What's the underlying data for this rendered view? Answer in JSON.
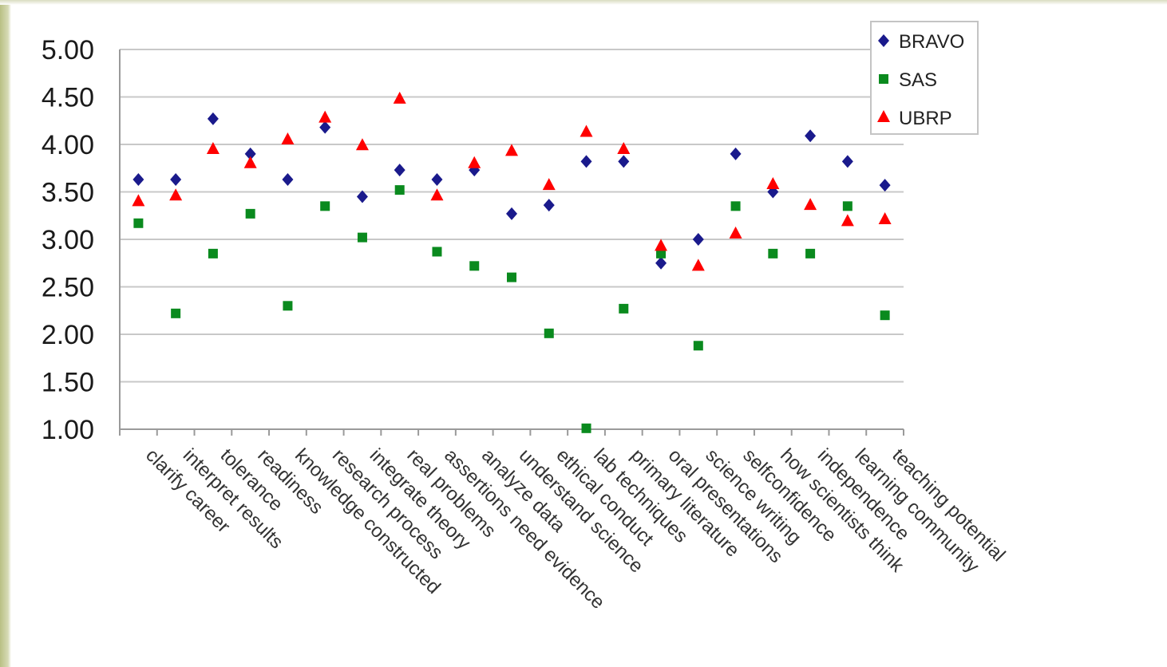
{
  "chart_data": {
    "type": "scatter",
    "title": "",
    "xlabel": "",
    "ylabel": "",
    "ylim": [
      1.0,
      5.0
    ],
    "yticks": [
      "1.00",
      "1.50",
      "2.00",
      "2.50",
      "3.00",
      "3.50",
      "4.00",
      "4.50",
      "5.00"
    ],
    "grid": true,
    "legend_position": "top-right",
    "categories": [
      "clarify career",
      "interpret results",
      "tolerance",
      "readiness",
      "knowledge constructed",
      "research process",
      "integrate theory",
      "real problems",
      "assertions need evidence",
      "analyze data",
      "understand science",
      "ethical conduct",
      "lab techniques",
      "primary literature",
      "oral presentations",
      "science writing",
      "selfconfidence",
      "how scientists think",
      "independence",
      "learning community",
      "teaching potential"
    ],
    "series": [
      {
        "name": "BRAVO",
        "marker": "diamond",
        "color": "#1a1a8c",
        "values": [
          3.63,
          3.63,
          4.27,
          3.9,
          3.63,
          4.18,
          3.45,
          3.73,
          3.63,
          3.73,
          3.27,
          3.36,
          3.82,
          3.82,
          2.75,
          3.0,
          3.9,
          3.5,
          4.09,
          3.82,
          3.57
        ]
      },
      {
        "name": "SAS",
        "marker": "square",
        "color": "#0a8a1e",
        "values": [
          3.17,
          2.22,
          2.85,
          3.27,
          2.3,
          3.35,
          3.02,
          3.52,
          2.87,
          2.72,
          2.6,
          2.01,
          1.01,
          2.27,
          2.85,
          1.88,
          3.35,
          2.85,
          2.85,
          3.35,
          2.2
        ]
      },
      {
        "name": "UBRP",
        "marker": "triangle",
        "color": "#ff0000",
        "values": [
          3.4,
          3.46,
          3.95,
          3.8,
          4.05,
          4.28,
          3.99,
          4.48,
          3.46,
          3.8,
          3.93,
          3.57,
          4.13,
          3.95,
          2.93,
          2.72,
          3.06,
          3.58,
          3.36,
          3.19,
          3.21
        ]
      }
    ]
  }
}
